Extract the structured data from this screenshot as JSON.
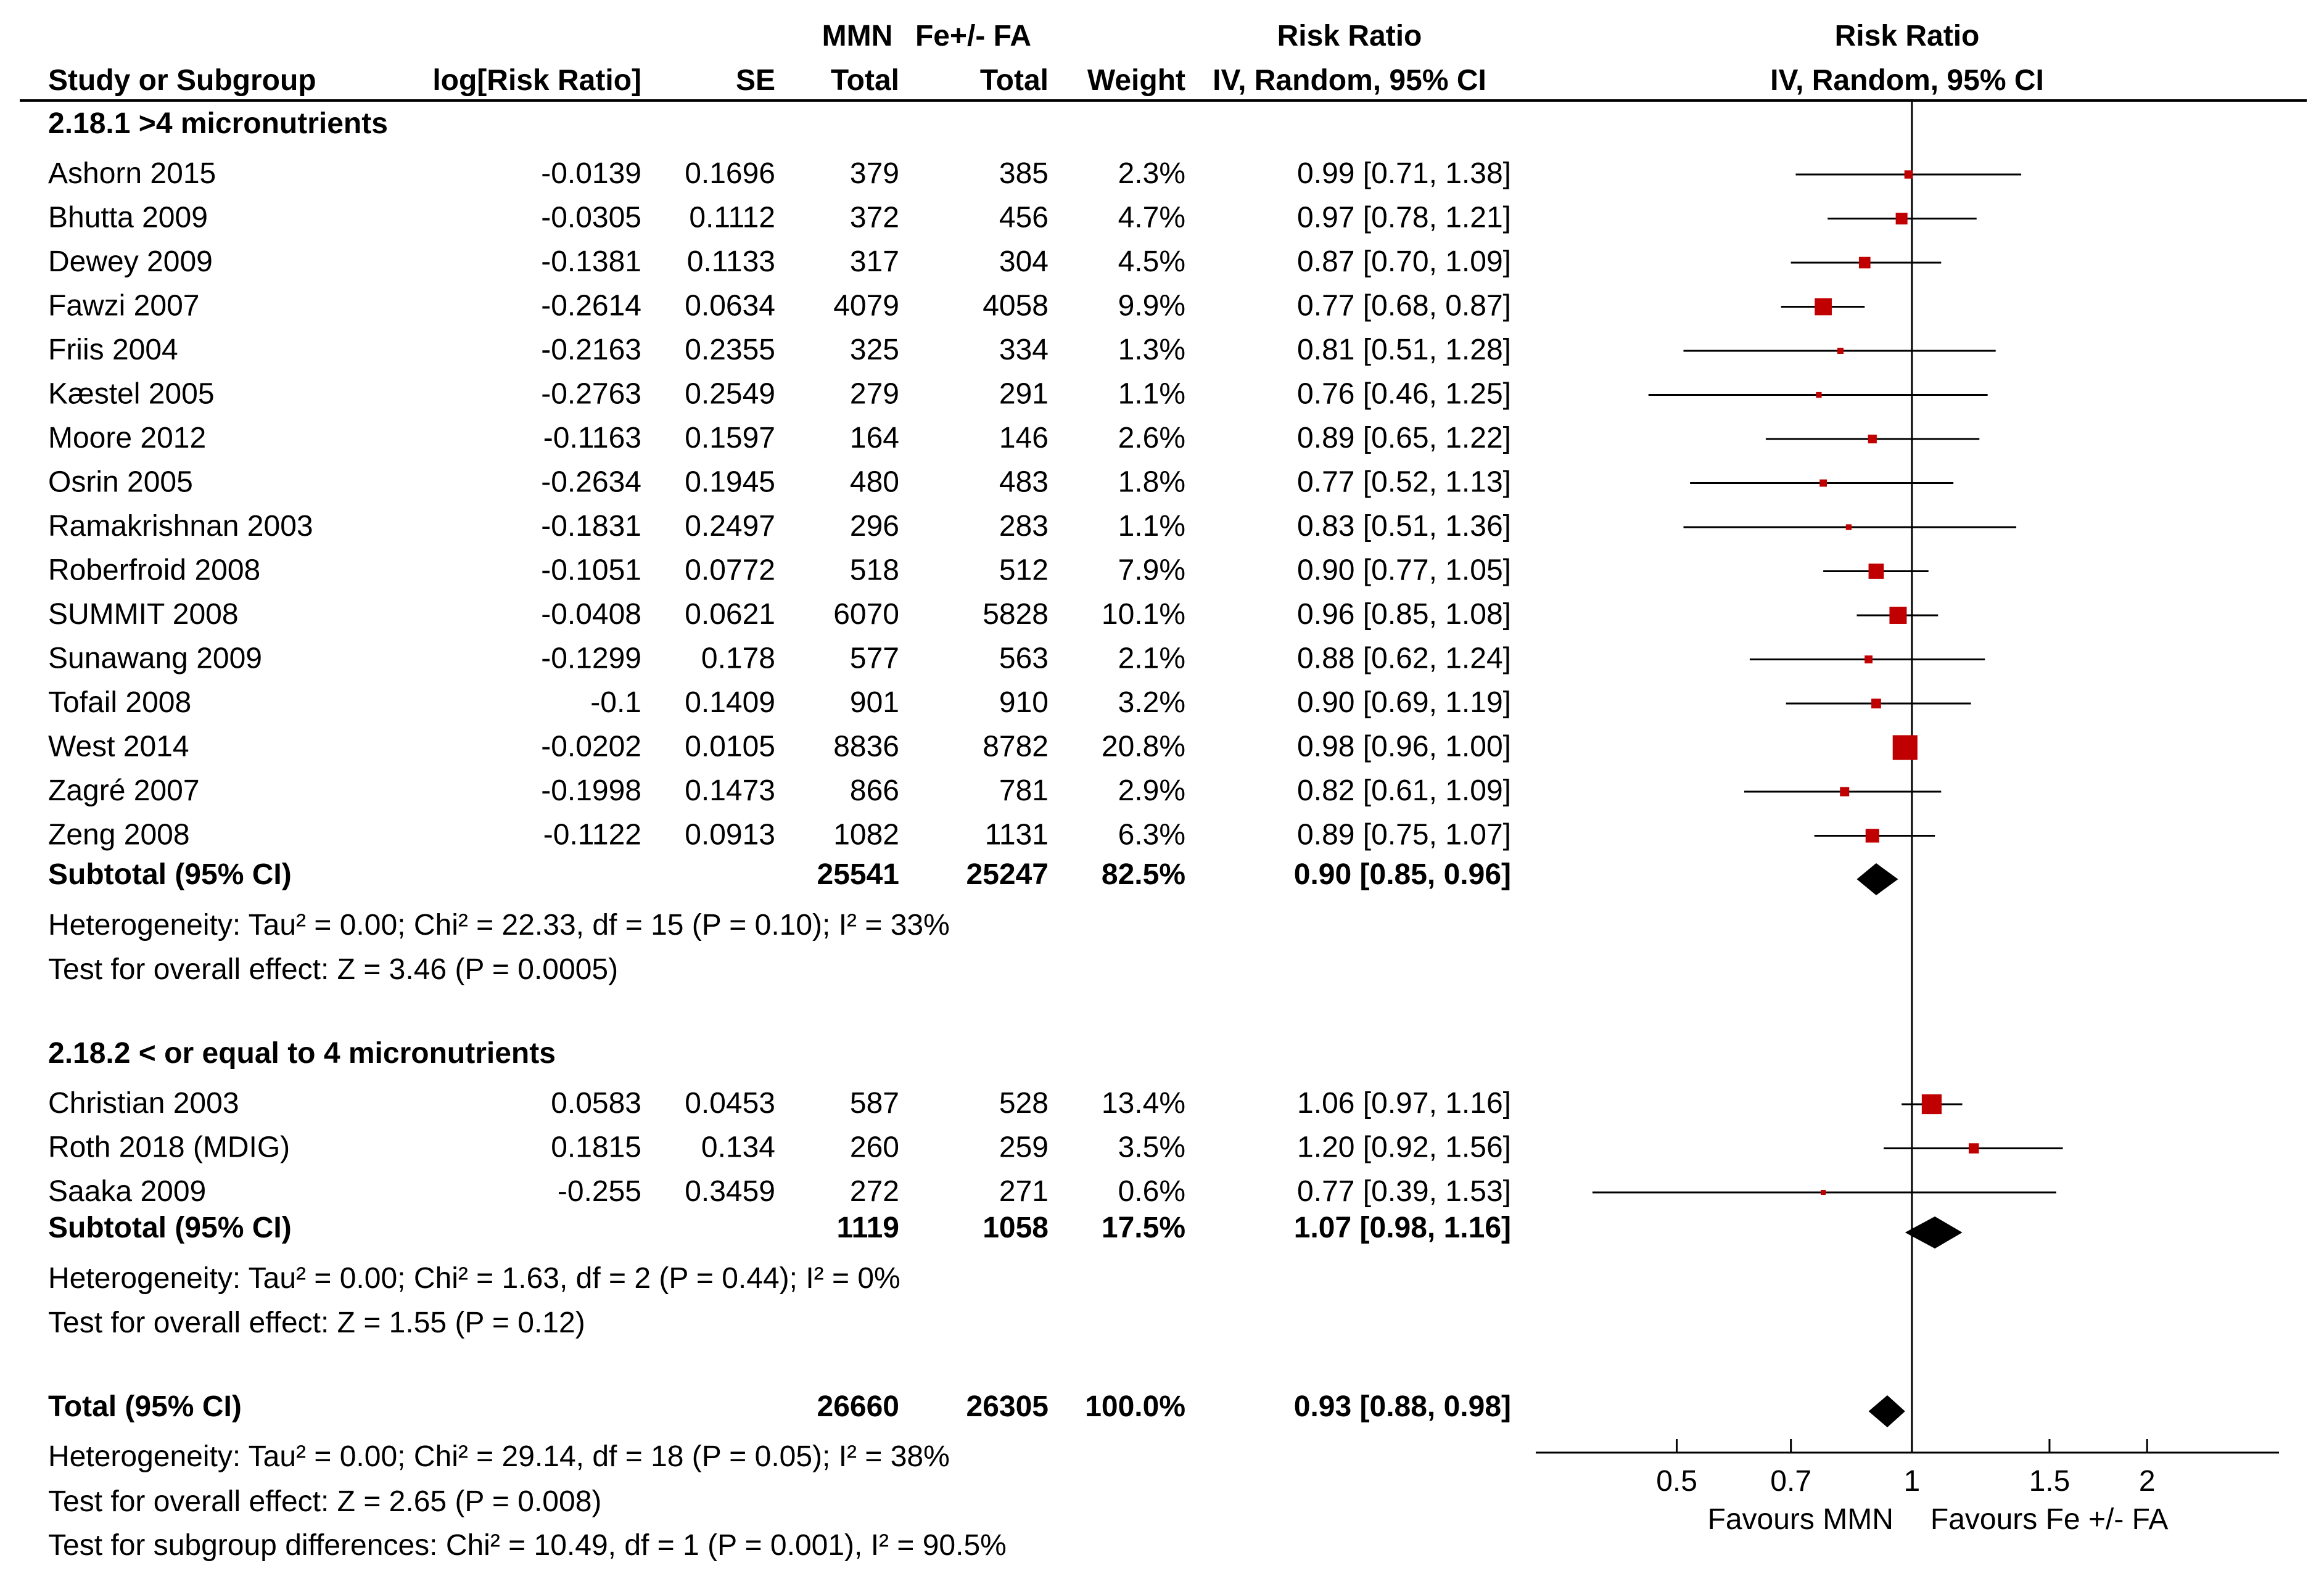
{
  "header": {
    "group1_label": "MMN",
    "group2_label": "Fe+/- FA",
    "rr_title": "Risk Ratio",
    "plot_title": "Risk Ratio",
    "col_study": "Study or Subgroup",
    "col_logrr": "log[Risk Ratio]",
    "col_se": "SE",
    "col_total1": "Total",
    "col_total2": "Total",
    "col_weight": "Weight",
    "col_ci": "IV, Random, 95% CI",
    "plot_method": "IV, Random, 95% CI"
  },
  "colors": {
    "marker": "#c00000",
    "line": "#000000"
  },
  "chart_data": {
    "type": "forest",
    "title": "Risk Ratio",
    "xscale": "log",
    "xlim": [
      0.33,
      2.95
    ],
    "ticks": [
      "0.5",
      "0.7",
      "1",
      "1.5",
      "2"
    ],
    "tick_values": [
      0.5,
      0.7,
      1,
      1.5,
      2
    ],
    "left_label": "Favours MMN",
    "right_label": "Favours Fe +/- FA",
    "groups": [
      {
        "title": "2.18.1 >4 micronutrients",
        "studies": [
          {
            "name": "Ashorn 2015",
            "logrr": "-0.0139",
            "se": "0.1696",
            "total1": "379",
            "total2": "385",
            "weight": "2.3%",
            "ci": "0.99 [0.71, 1.38]",
            "rr": 0.99,
            "lo": 0.71,
            "hi": 1.38,
            "w": 2.3
          },
          {
            "name": "Bhutta 2009",
            "logrr": "-0.0305",
            "se": "0.1112",
            "total1": "372",
            "total2": "456",
            "weight": "4.7%",
            "ci": "0.97 [0.78, 1.21]",
            "rr": 0.97,
            "lo": 0.78,
            "hi": 1.21,
            "w": 4.7
          },
          {
            "name": "Dewey 2009",
            "logrr": "-0.1381",
            "se": "0.1133",
            "total1": "317",
            "total2": "304",
            "weight": "4.5%",
            "ci": "0.87 [0.70, 1.09]",
            "rr": 0.87,
            "lo": 0.7,
            "hi": 1.09,
            "w": 4.5
          },
          {
            "name": "Fawzi 2007",
            "logrr": "-0.2614",
            "se": "0.0634",
            "total1": "4079",
            "total2": "4058",
            "weight": "9.9%",
            "ci": "0.77 [0.68, 0.87]",
            "rr": 0.77,
            "lo": 0.68,
            "hi": 0.87,
            "w": 9.9
          },
          {
            "name": "Friis 2004",
            "logrr": "-0.2163",
            "se": "0.2355",
            "total1": "325",
            "total2": "334",
            "weight": "1.3%",
            "ci": "0.81 [0.51, 1.28]",
            "rr": 0.81,
            "lo": 0.51,
            "hi": 1.28,
            "w": 1.3
          },
          {
            "name": "Kæstel 2005",
            "logrr": "-0.2763",
            "se": "0.2549",
            "total1": "279",
            "total2": "291",
            "weight": "1.1%",
            "ci": "0.76 [0.46, 1.25]",
            "rr": 0.76,
            "lo": 0.46,
            "hi": 1.25,
            "w": 1.1
          },
          {
            "name": "Moore 2012",
            "logrr": "-0.1163",
            "se": "0.1597",
            "total1": "164",
            "total2": "146",
            "weight": "2.6%",
            "ci": "0.89 [0.65, 1.22]",
            "rr": 0.89,
            "lo": 0.65,
            "hi": 1.22,
            "w": 2.6
          },
          {
            "name": "Osrin 2005",
            "logrr": "-0.2634",
            "se": "0.1945",
            "total1": "480",
            "total2": "483",
            "weight": "1.8%",
            "ci": "0.77 [0.52, 1.13]",
            "rr": 0.77,
            "lo": 0.52,
            "hi": 1.13,
            "w": 1.8
          },
          {
            "name": "Ramakrishnan 2003",
            "logrr": "-0.1831",
            "se": "0.2497",
            "total1": "296",
            "total2": "283",
            "weight": "1.1%",
            "ci": "0.83 [0.51, 1.36]",
            "rr": 0.83,
            "lo": 0.51,
            "hi": 1.36,
            "w": 1.1
          },
          {
            "name": "Roberfroid 2008",
            "logrr": "-0.1051",
            "se": "0.0772",
            "total1": "518",
            "total2": "512",
            "weight": "7.9%",
            "ci": "0.90 [0.77, 1.05]",
            "rr": 0.9,
            "lo": 0.77,
            "hi": 1.05,
            "w": 7.9
          },
          {
            "name": "SUMMIT 2008",
            "logrr": "-0.0408",
            "se": "0.0621",
            "total1": "6070",
            "total2": "5828",
            "weight": "10.1%",
            "ci": "0.96 [0.85, 1.08]",
            "rr": 0.96,
            "lo": 0.85,
            "hi": 1.08,
            "w": 10.1
          },
          {
            "name": "Sunawang 2009",
            "logrr": "-0.1299",
            "se": "0.178",
            "total1": "577",
            "total2": "563",
            "weight": "2.1%",
            "ci": "0.88 [0.62, 1.24]",
            "rr": 0.88,
            "lo": 0.62,
            "hi": 1.24,
            "w": 2.1
          },
          {
            "name": "Tofail 2008",
            "logrr": "-0.1",
            "se": "0.1409",
            "total1": "901",
            "total2": "910",
            "weight": "3.2%",
            "ci": "0.90 [0.69, 1.19]",
            "rr": 0.9,
            "lo": 0.69,
            "hi": 1.19,
            "w": 3.2
          },
          {
            "name": "West 2014",
            "logrr": "-0.0202",
            "se": "0.0105",
            "total1": "8836",
            "total2": "8782",
            "weight": "20.8%",
            "ci": "0.98 [0.96, 1.00]",
            "rr": 0.98,
            "lo": 0.96,
            "hi": 1.0,
            "w": 20.8
          },
          {
            "name": "Zagré 2007",
            "logrr": "-0.1998",
            "se": "0.1473",
            "total1": "866",
            "total2": "781",
            "weight": "2.9%",
            "ci": "0.82 [0.61, 1.09]",
            "rr": 0.82,
            "lo": 0.61,
            "hi": 1.09,
            "w": 2.9
          },
          {
            "name": "Zeng 2008",
            "logrr": "-0.1122",
            "se": "0.0913",
            "total1": "1082",
            "total2": "1131",
            "weight": "6.3%",
            "ci": "0.89 [0.75, 1.07]",
            "rr": 0.89,
            "lo": 0.75,
            "hi": 1.07,
            "w": 6.3
          }
        ],
        "subtotal": {
          "label": "Subtotal (95% CI)",
          "total1": "25541",
          "total2": "25247",
          "weight": "82.5%",
          "ci": "0.90 [0.85, 0.96]",
          "rr": 0.9,
          "lo": 0.85,
          "hi": 0.96
        },
        "heterogeneity": "Heterogeneity: Tau² = 0.00; Chi² = 22.33, df = 15 (P = 0.10); I² = 33%",
        "overall": "Test for overall effect: Z = 3.46 (P = 0.0005)"
      },
      {
        "title": "2.18.2 < or equal to 4 micronutrients",
        "studies": [
          {
            "name": "Christian 2003",
            "logrr": "0.0583",
            "se": "0.0453",
            "total1": "587",
            "total2": "528",
            "weight": "13.4%",
            "ci": "1.06 [0.97, 1.16]",
            "rr": 1.06,
            "lo": 0.97,
            "hi": 1.16,
            "w": 13.4
          },
          {
            "name": "Roth 2018 (MDIG)",
            "logrr": "0.1815",
            "se": "0.134",
            "total1": "260",
            "total2": "259",
            "weight": "3.5%",
            "ci": "1.20 [0.92, 1.56]",
            "rr": 1.2,
            "lo": 0.92,
            "hi": 1.56,
            "w": 3.5
          },
          {
            "name": "Saaka 2009",
            "logrr": "-0.255",
            "se": "0.3459",
            "total1": "272",
            "total2": "271",
            "weight": "0.6%",
            "ci": "0.77 [0.39, 1.53]",
            "rr": 0.77,
            "lo": 0.39,
            "hi": 1.53,
            "w": 0.6
          }
        ],
        "subtotal": {
          "label": "Subtotal (95% CI)",
          "total1": "1119",
          "total2": "1058",
          "weight": "17.5%",
          "ci": "1.07 [0.98, 1.16]",
          "rr": 1.07,
          "lo": 0.98,
          "hi": 1.16
        },
        "heterogeneity": "Heterogeneity: Tau² = 0.00; Chi² = 1.63, df = 2 (P = 0.44); I² = 0%",
        "overall": "Test for overall effect: Z = 1.55 (P = 0.12)"
      }
    ],
    "total": {
      "label": "Total (95% CI)",
      "total1": "26660",
      "total2": "26305",
      "weight": "100.0%",
      "ci": "0.93 [0.88, 0.98]",
      "rr": 0.93,
      "lo": 0.88,
      "hi": 0.98
    },
    "footer": [
      "Heterogeneity: Tau² = 0.00; Chi² = 29.14, df = 18 (P = 0.05); I² = 38%",
      "Test for overall effect: Z = 2.65 (P = 0.008)",
      "Test for subgroup differences: Chi² = 10.49, df = 1 (P = 0.001), I² = 90.5%"
    ]
  }
}
